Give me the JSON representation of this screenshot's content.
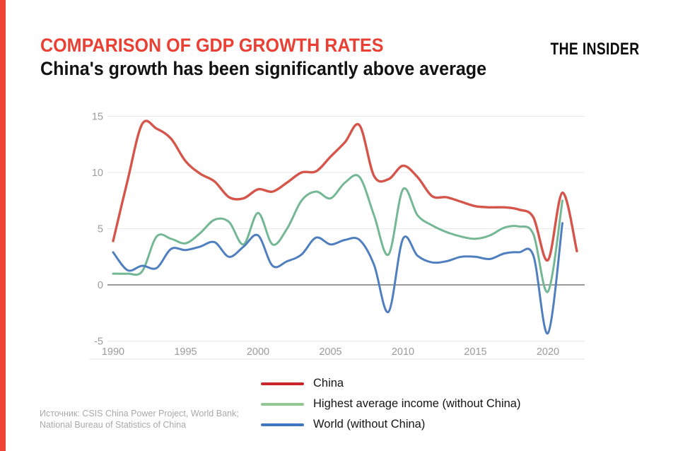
{
  "page": {
    "bg": "#ffffff",
    "accent_bar_color": "#f04337"
  },
  "header": {
    "title": "COMPARISON OF GDP GROWTH RATES",
    "title_color": "#ea4034",
    "subtitle": "China's growth has been significantly above average",
    "subtitle_color": "#121212",
    "logo": "THE INSIDER"
  },
  "source": {
    "line1": "Источник: CSIS China Power Project, World Bank;",
    "line2": "National Bureau of Statistics of China"
  },
  "chart_data": {
    "type": "line",
    "title": "COMPARISON OF GDP GROWTH RATES",
    "subtitle": "China's growth has been significantly above average",
    "xlabel": "",
    "ylabel": "",
    "xlim": [
      1990,
      2022
    ],
    "ylim": [
      -5,
      15
    ],
    "x_ticks": [
      1990,
      1995,
      2000,
      2005,
      2010,
      2015,
      2020
    ],
    "y_ticks": [
      15,
      10,
      5,
      0,
      -5
    ],
    "grid": "horizontal",
    "legend_position": "bottom-center",
    "x": [
      1990,
      1991,
      1992,
      1993,
      1994,
      1995,
      1996,
      1997,
      1998,
      1999,
      2000,
      2001,
      2002,
      2003,
      2004,
      2005,
      2006,
      2007,
      2008,
      2009,
      2010,
      2011,
      2012,
      2013,
      2014,
      2015,
      2016,
      2017,
      2018,
      2019,
      2020,
      2021,
      2022
    ],
    "series": [
      {
        "name": "China",
        "color": "#d5554b",
        "legend_color": "#c9252b",
        "values": [
          3.9,
          9.3,
          14.3,
          13.9,
          13.0,
          11.0,
          9.9,
          9.2,
          7.8,
          7.7,
          8.5,
          8.3,
          9.1,
          10.0,
          10.1,
          11.4,
          12.7,
          14.2,
          9.7,
          9.4,
          10.6,
          9.6,
          7.9,
          7.8,
          7.4,
          7.0,
          6.9,
          6.9,
          6.7,
          6.0,
          2.2,
          8.2,
          3.0
        ]
      },
      {
        "name": "Highest average income (without China)",
        "color": "#74b795",
        "legend_color": "#95c694",
        "values": [
          1.0,
          1.0,
          1.2,
          4.3,
          4.1,
          3.7,
          4.6,
          5.8,
          5.6,
          3.6,
          6.4,
          3.6,
          5.0,
          7.5,
          8.3,
          7.7,
          9.1,
          9.6,
          6.2,
          2.7,
          8.5,
          6.2,
          5.3,
          4.7,
          4.3,
          4.1,
          4.4,
          5.1,
          5.2,
          4.5,
          -0.6,
          7.5,
          null
        ]
      },
      {
        "name": "World (without China)",
        "color": "#4f7fbf",
        "legend_color": "#3e77c0",
        "values": [
          2.9,
          1.3,
          1.7,
          1.5,
          3.2,
          3.1,
          3.4,
          3.8,
          2.5,
          3.4,
          4.4,
          1.7,
          2.1,
          2.7,
          4.2,
          3.6,
          4.0,
          4.0,
          1.8,
          -2.4,
          4.1,
          2.6,
          2.0,
          2.1,
          2.5,
          2.5,
          2.3,
          2.8,
          2.9,
          2.6,
          -4.3,
          5.5,
          null
        ]
      }
    ],
    "colors": {
      "grid_line": "#e9e9e9",
      "zero_line": "#8c8c8c",
      "axis_border": "#e2e2e2",
      "tick_label": "#9b9b9b"
    }
  }
}
